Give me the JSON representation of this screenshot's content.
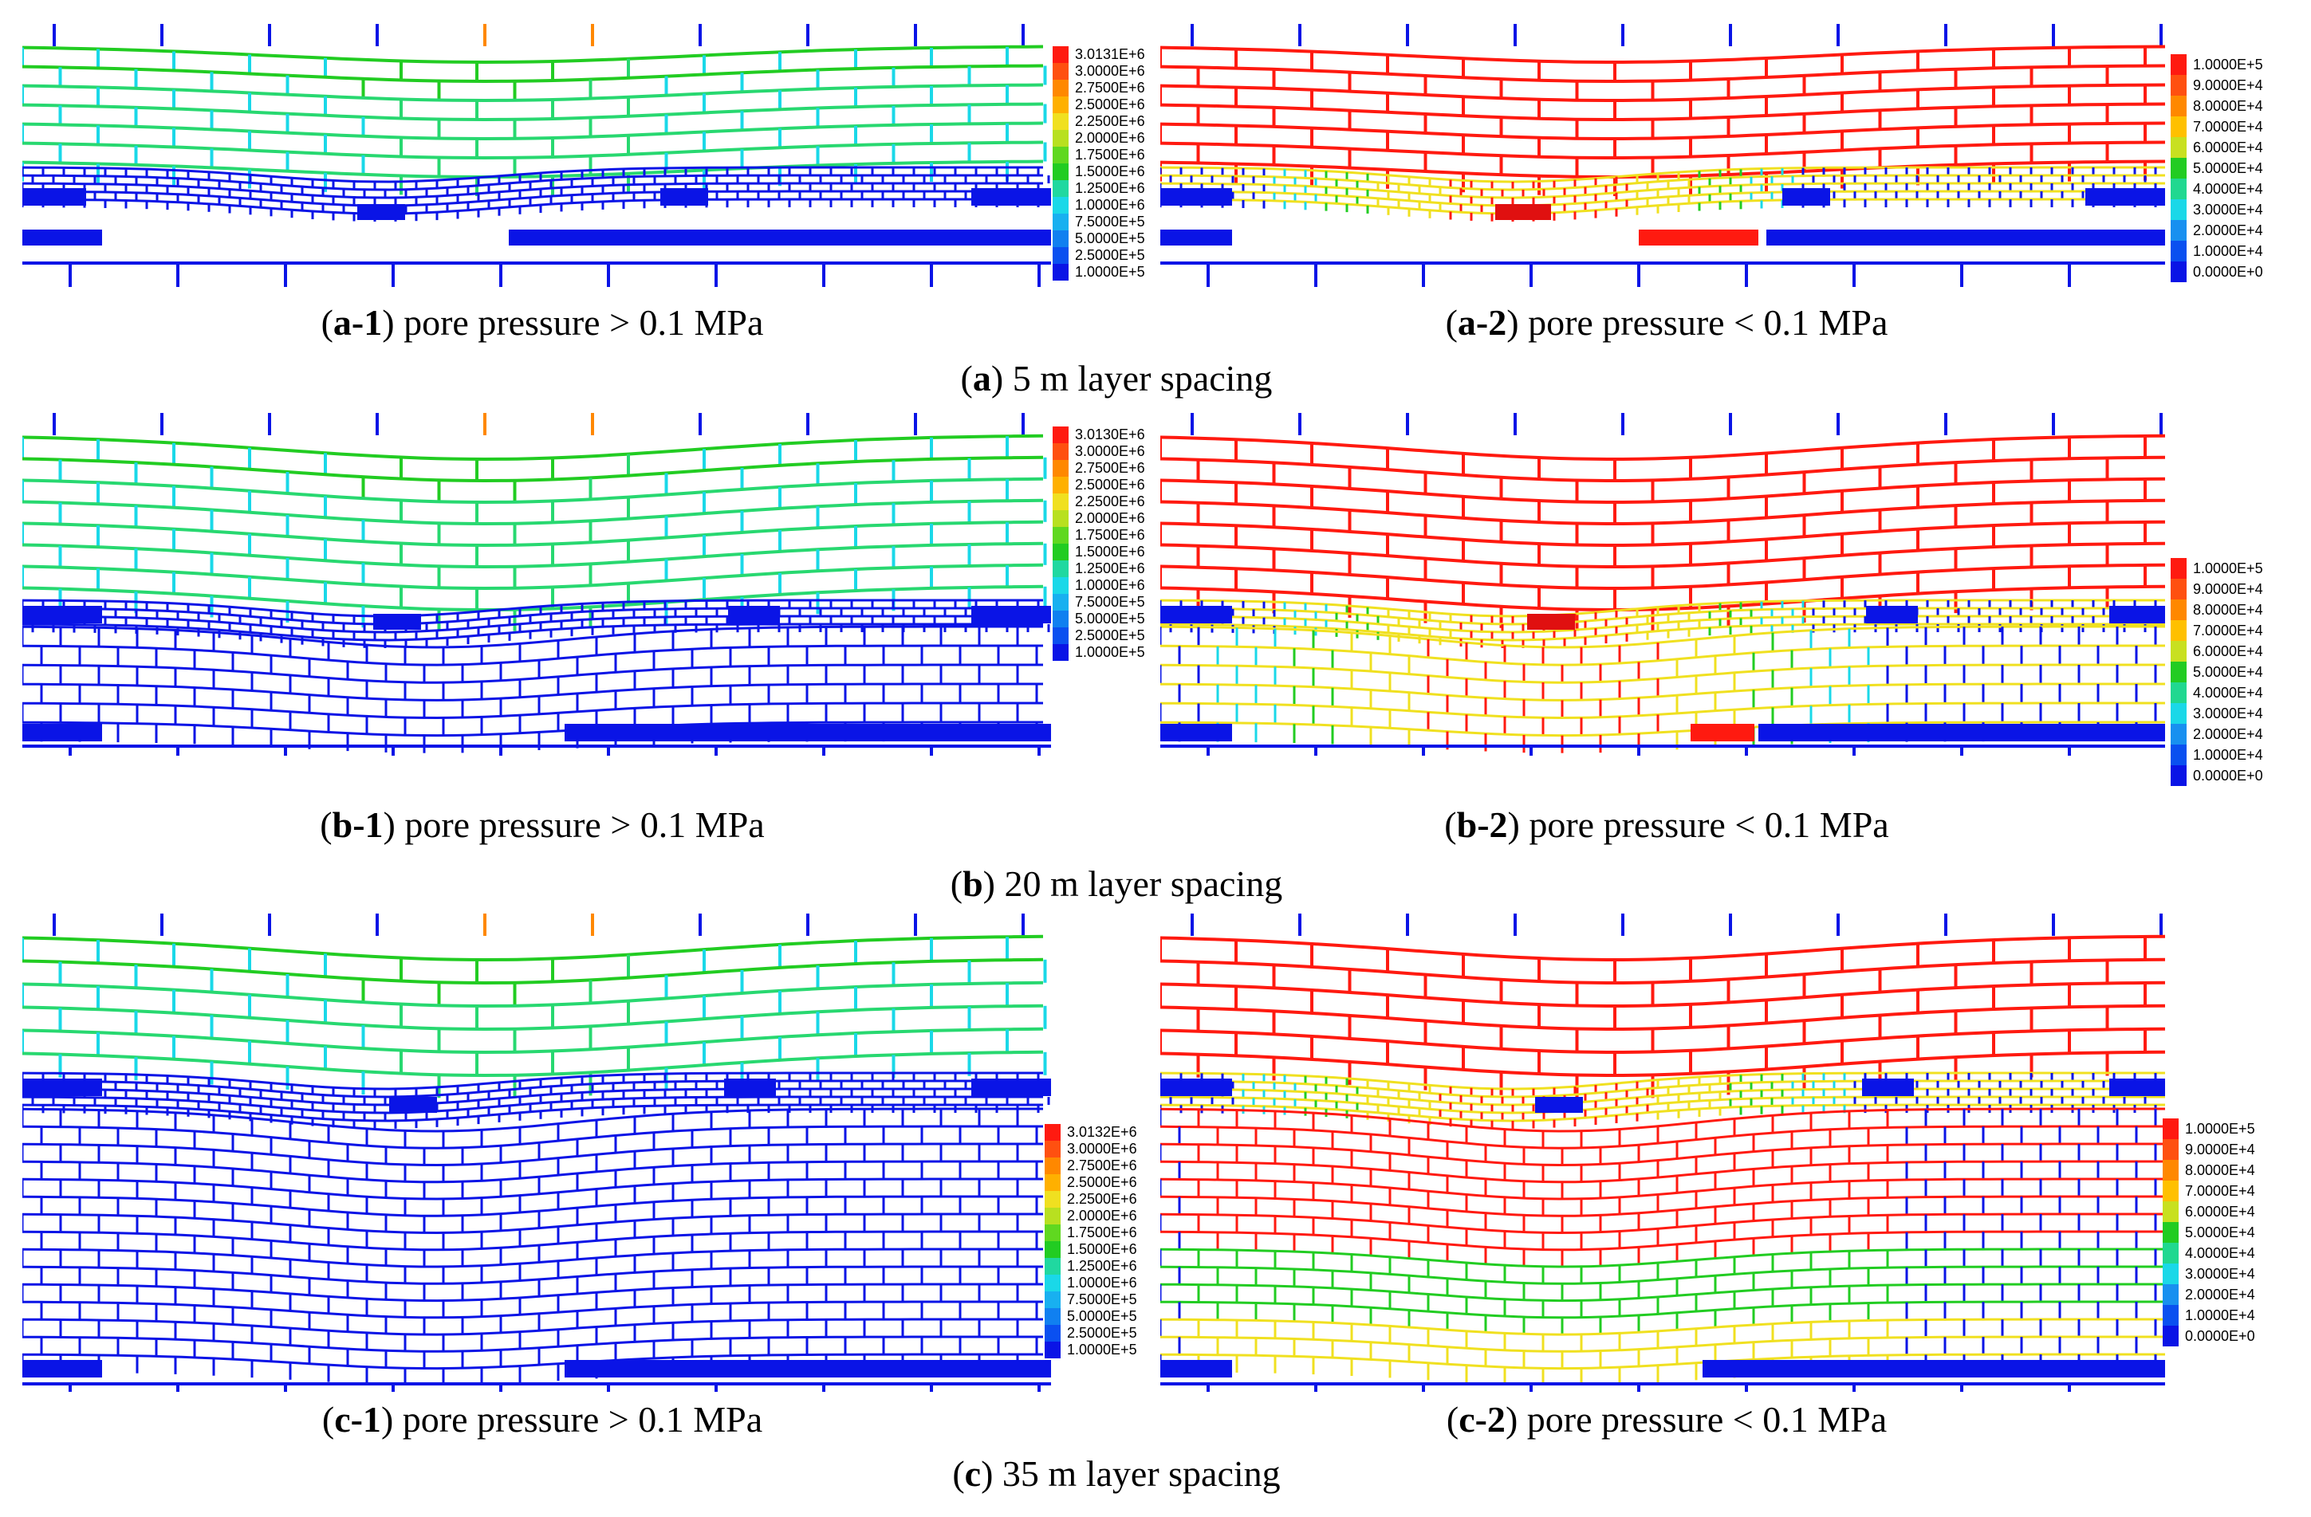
{
  "colors": {
    "blue": "#0a14e6",
    "cyan": "#1ad8e8",
    "green": "#22cc22",
    "yellow": "#f0e020",
    "orange": "#ff8800",
    "red": "#ff1a10"
  },
  "legend_high": {
    "a": [
      "3.0131E+6",
      "3.0000E+6",
      "2.7500E+6",
      "2.5000E+6",
      "2.2500E+6",
      "2.0000E+6",
      "1.7500E+6",
      "1.5000E+6",
      "1.2500E+6",
      "1.0000E+6",
      "7.5000E+5",
      "5.0000E+5",
      "2.5000E+5",
      "1.0000E+5"
    ],
    "b": [
      "3.0130E+6",
      "3.0000E+6",
      "2.7500E+6",
      "2.5000E+6",
      "2.2500E+6",
      "2.0000E+6",
      "1.7500E+6",
      "1.5000E+6",
      "1.2500E+6",
      "1.0000E+6",
      "7.5000E+5",
      "5.0000E+5",
      "2.5000E+5",
      "1.0000E+5"
    ],
    "c": [
      "3.0132E+6",
      "3.0000E+6",
      "2.7500E+6",
      "2.5000E+6",
      "2.2500E+6",
      "2.0000E+6",
      "1.7500E+6",
      "1.5000E+6",
      "1.2500E+6",
      "1.0000E+6",
      "7.5000E+5",
      "5.0000E+5",
      "2.5000E+5",
      "1.0000E+5"
    ]
  },
  "legend_low": [
    "1.0000E+5",
    "9.0000E+4",
    "8.0000E+4",
    "7.0000E+4",
    "6.0000E+4",
    "5.0000E+4",
    "4.0000E+4",
    "3.0000E+4",
    "2.0000E+4",
    "1.0000E+4",
    "0.0000E+0"
  ],
  "captions": {
    "a1": {
      "tag": "a-1",
      "text": " pore pressure > 0.1 MPa"
    },
    "a2": {
      "tag": "a-2",
      "text": " pore pressure < 0.1 MPa"
    },
    "a": {
      "tag": "a",
      "text": " 5 m layer spacing"
    },
    "b1": {
      "tag": "b-1",
      "text": " pore pressure > 0.1 MPa"
    },
    "b2": {
      "tag": "b-2",
      "text": " pore pressure < 0.1 MPa"
    },
    "b": {
      "tag": "b",
      "text": " 20 m layer spacing"
    },
    "c1": {
      "tag": "c-1",
      "text": " pore pressure > 0.1 MPa"
    },
    "c2": {
      "tag": "c-2",
      "text": " pore pressure < 0.1 MPa"
    },
    "c": {
      "tag": "c",
      "text": " 35 m layer spacing"
    }
  }
}
